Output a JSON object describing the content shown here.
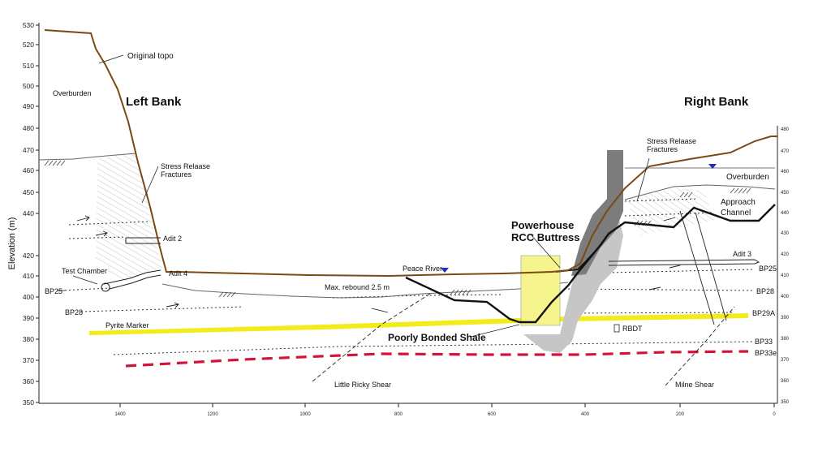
{
  "y_axis": {
    "label": "Elevation (m)",
    "left_ticks": [
      "530",
      "520",
      "510",
      "500",
      "490",
      "480",
      "470",
      "460",
      "450",
      "440",
      "420",
      "410",
      "400",
      "390",
      "380",
      "370",
      "360",
      "350"
    ],
    "right_ticks": [
      "480",
      "470",
      "460",
      "450",
      "440",
      "430",
      "420",
      "410",
      "400",
      "390",
      "380",
      "370",
      "360",
      "350"
    ]
  },
  "x_axis": {
    "ticks": [
      "1400",
      "1200",
      "1000",
      "800",
      "600",
      "400",
      "200",
      "0"
    ]
  },
  "labels": {
    "original_topo": "Original topo",
    "overburden_left": "Overburden",
    "left_bank": "Left Bank",
    "right_bank": "Right Bank",
    "stress_left_1": "Stress Relaase",
    "stress_left_2": "Fractures",
    "stress_right_1": "Stress Relaase",
    "stress_right_2": "Fractures",
    "overburden_right": "Overburden",
    "approach_1": "Approach",
    "approach_2": "Channel",
    "adit2": "Adit 2",
    "adit3": "Adit 3",
    "adit4": "Adit 4",
    "test_chamber": "Test Chamber",
    "peace_river": "Peace River",
    "powerhouse_1": "Powerhouse",
    "powerhouse_2": "RCC Buttress",
    "max_rebound": "Max. rebound 2.5 m",
    "pyrite_marker": "Pyrite Marker",
    "poorly_bonded": "Poorly Bonded Shale",
    "rbdt": "RBDT",
    "little_ricky": "Little Ricky Shear",
    "milne": "Milne Shear",
    "bp25_left": "BP25",
    "bp28_left": "BP28",
    "bp25_right": "BP25",
    "bp28_right": "BP28",
    "bp29a": "BP29A",
    "bp33": "BP33",
    "bp33e": "BP33e"
  },
  "colors": {
    "topo": "#7a4a12",
    "pyrite": "#f2ec1a",
    "bp33e": "#d2143a",
    "powerhouse_fill": "#f6f48c",
    "concrete_light": "#c6c6c6",
    "concrete_dark": "#7c7c7c",
    "water": "#1f2fb0"
  }
}
